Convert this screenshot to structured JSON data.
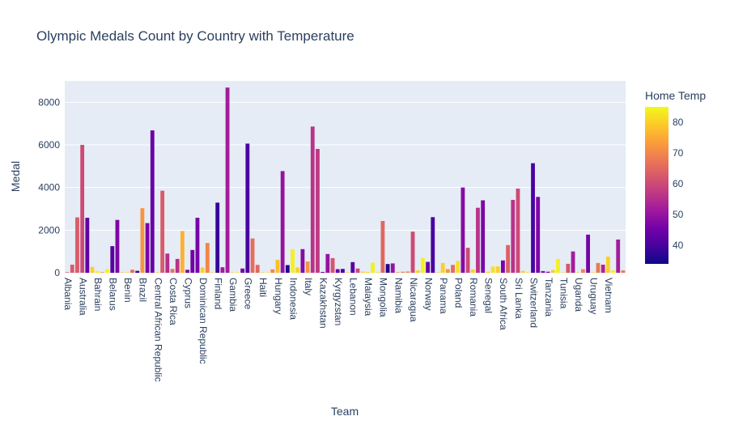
{
  "chart_data": {
    "type": "bar",
    "title": "Olympic Medals Count by Country with Temperature",
    "xlabel": "Team",
    "ylabel": "Medal",
    "ylim": [
      0,
      9000
    ],
    "yticks": [
      0,
      2000,
      4000,
      6000,
      8000
    ],
    "grid": true,
    "colorbar": {
      "title": "Home Temp",
      "range": [
        34,
        85
      ],
      "ticks": [
        40,
        50,
        60,
        70,
        80
      ],
      "colorscale": [
        "#0d0887",
        "#46039f",
        "#7201a8",
        "#9c179e",
        "#bd3786",
        "#d8576b",
        "#ed7953",
        "#fb9f3a",
        "#fdca26",
        "#f0f921"
      ]
    },
    "tick_labels": [
      "Albania",
      "Australia",
      "Bahrain",
      "Belarus",
      "Benin",
      "Brazil",
      "Central African Republic",
      "Costa Rica",
      "Cyprus",
      "Dominican Republic",
      "Finland",
      "Gambia",
      "Greece",
      "Haiti",
      "Hungary",
      "Indonesia",
      "Italy",
      "Kazakhstan",
      "Kyrgyzstan",
      "Lebanon",
      "Malaysia",
      "Mongolia",
      "Namibia",
      "Nicaragua",
      "Norway",
      "Panama",
      "Poland",
      "Romania",
      "Senegal",
      "South Africa",
      "Sri Lanka",
      "Switzerland",
      "Tanzania",
      "Tunisia",
      "Uganda",
      "Uruguay",
      "Vietnam"
    ],
    "bars": [
      {
        "value": 20,
        "temp": 60
      },
      {
        "value": 380,
        "temp": 63
      },
      {
        "value": 2600,
        "temp": 63
      },
      {
        "value": 6000,
        "temp": 60
      },
      {
        "value": 2580,
        "temp": 43
      },
      {
        "value": 280,
        "temp": 80
      },
      {
        "value": 80,
        "temp": 84
      },
      {
        "value": 30,
        "temp": 72
      },
      {
        "value": 170,
        "temp": 84
      },
      {
        "value": 1250,
        "temp": 42
      },
      {
        "value": 2480,
        "temp": 47
      },
      {
        "value": 10,
        "temp": 78
      },
      {
        "value": 10,
        "temp": 80
      },
      {
        "value": 140,
        "temp": 66
      },
      {
        "value": 90,
        "temp": 38
      },
      {
        "value": 3030,
        "temp": 72
      },
      {
        "value": 2330,
        "temp": 46
      },
      {
        "value": 6680,
        "temp": 44
      },
      {
        "value": 20,
        "temp": 80
      },
      {
        "value": 3850,
        "temp": 63
      },
      {
        "value": 900,
        "temp": 55
      },
      {
        "value": 180,
        "temp": 67
      },
      {
        "value": 650,
        "temp": 56
      },
      {
        "value": 1960,
        "temp": 76
      },
      {
        "value": 140,
        "temp": 46
      },
      {
        "value": 1070,
        "temp": 45
      },
      {
        "value": 2580,
        "temp": 46
      },
      {
        "value": 250,
        "temp": 80
      },
      {
        "value": 1400,
        "temp": 70
      },
      {
        "value": 10,
        "temp": 80
      },
      {
        "value": 3290,
        "temp": 38
      },
      {
        "value": 260,
        "temp": 52
      },
      {
        "value": 8690,
        "temp": 52
      },
      {
        "value": 10,
        "temp": 80
      },
      {
        "value": 10,
        "temp": 82
      },
      {
        "value": 200,
        "temp": 46
      },
      {
        "value": 6060,
        "temp": 40
      },
      {
        "value": 1610,
        "temp": 66
      },
      {
        "value": 370,
        "temp": 65
      },
      {
        "value": 10,
        "temp": 80
      },
      {
        "value": 20,
        "temp": 82
      },
      {
        "value": 160,
        "temp": 70
      },
      {
        "value": 610,
        "temp": 78
      },
      {
        "value": 4770,
        "temp": 50
      },
      {
        "value": 360,
        "temp": 36
      },
      {
        "value": 1110,
        "temp": 84
      },
      {
        "value": 250,
        "temp": 80
      },
      {
        "value": 1110,
        "temp": 48
      },
      {
        "value": 530,
        "temp": 72
      },
      {
        "value": 6860,
        "temp": 56
      },
      {
        "value": 5810,
        "temp": 57
      },
      {
        "value": 40,
        "temp": 46
      },
      {
        "value": 880,
        "temp": 50
      },
      {
        "value": 690,
        "temp": 62
      },
      {
        "value": 170,
        "temp": 45
      },
      {
        "value": 180,
        "temp": 40
      },
      {
        "value": 20,
        "temp": 80
      },
      {
        "value": 500,
        "temp": 42
      },
      {
        "value": 200,
        "temp": 60
      },
      {
        "value": 60,
        "temp": 80
      },
      {
        "value": 40,
        "temp": 80
      },
      {
        "value": 480,
        "temp": 84
      },
      {
        "value": 20,
        "temp": 80
      },
      {
        "value": 2430,
        "temp": 65
      },
      {
        "value": 410,
        "temp": 36
      },
      {
        "value": 440,
        "temp": 50
      },
      {
        "value": 20,
        "temp": 70
      },
      {
        "value": 50,
        "temp": 70
      },
      {
        "value": 60,
        "temp": 70
      },
      {
        "value": 1930,
        "temp": 60
      },
      {
        "value": 110,
        "temp": 80
      },
      {
        "value": 700,
        "temp": 84
      },
      {
        "value": 510,
        "temp": 44
      },
      {
        "value": 2610,
        "temp": 40
      },
      {
        "value": 20,
        "temp": 80
      },
      {
        "value": 460,
        "temp": 80
      },
      {
        "value": 170,
        "temp": 72
      },
      {
        "value": 370,
        "temp": 66
      },
      {
        "value": 550,
        "temp": 82
      },
      {
        "value": 4000,
        "temp": 48
      },
      {
        "value": 1170,
        "temp": 60
      },
      {
        "value": 160,
        "temp": 80
      },
      {
        "value": 3050,
        "temp": 56
      },
      {
        "value": 3400,
        "temp": 47
      },
      {
        "value": 50,
        "temp": 80
      },
      {
        "value": 290,
        "temp": 82
      },
      {
        "value": 300,
        "temp": 80
      },
      {
        "value": 580,
        "temp": 46
      },
      {
        "value": 1300,
        "temp": 64
      },
      {
        "value": 3420,
        "temp": 56
      },
      {
        "value": 3950,
        "temp": 60
      },
      {
        "value": 90,
        "temp": 80
      },
      {
        "value": 20,
        "temp": 80
      },
      {
        "value": 5140,
        "temp": 40
      },
      {
        "value": 3560,
        "temp": 47
      },
      {
        "value": 80,
        "temp": 48
      },
      {
        "value": 50,
        "temp": 48
      },
      {
        "value": 130,
        "temp": 80
      },
      {
        "value": 650,
        "temp": 84
      },
      {
        "value": 20,
        "temp": 80
      },
      {
        "value": 420,
        "temp": 62
      },
      {
        "value": 1000,
        "temp": 52
      },
      {
        "value": 20,
        "temp": 80
      },
      {
        "value": 170,
        "temp": 70
      },
      {
        "value": 1790,
        "temp": 46
      },
      {
        "value": 20,
        "temp": 80
      },
      {
        "value": 460,
        "temp": 68
      },
      {
        "value": 380,
        "temp": 54
      },
      {
        "value": 760,
        "temp": 80
      },
      {
        "value": 110,
        "temp": 84
      },
      {
        "value": 1560,
        "temp": 52
      },
      {
        "value": 110,
        "temp": 68
      }
    ]
  }
}
